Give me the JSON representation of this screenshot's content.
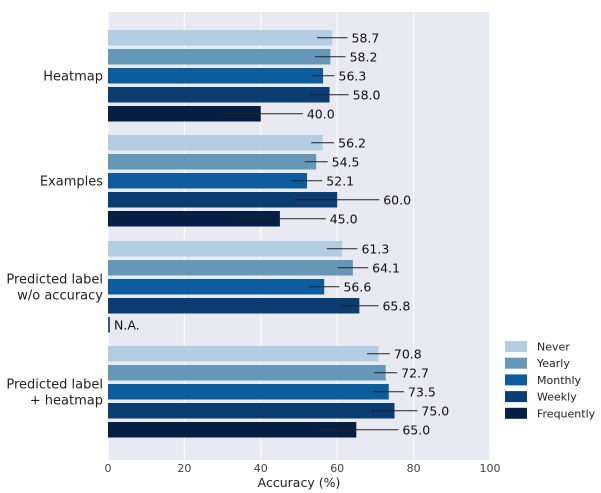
{
  "chart_data": {
    "type": "bar",
    "orientation": "horizontal",
    "xlabel": "Accuracy (%)",
    "xlim": [
      0,
      100
    ],
    "xticks": [
      0,
      20,
      40,
      60,
      80,
      100
    ],
    "grid": true,
    "legend_position": "bottom-right",
    "categories": [
      "Heatmap",
      "Examples",
      "Predicted label\nw/o accuracy",
      "Predicted label\n+ heatmap"
    ],
    "series": [
      {
        "name": "Never",
        "color": "#b3cde3",
        "values": [
          58.7,
          56.2,
          61.3,
          70.8
        ],
        "labels": [
          "58.7",
          "56.2",
          "61.3",
          "70.8"
        ],
        "error": [
          4,
          3,
          4,
          3
        ]
      },
      {
        "name": "Yearly",
        "color": "#6497b8",
        "values": [
          58.2,
          54.5,
          64.1,
          72.7
        ],
        "labels": [
          "58.2",
          "54.5",
          "64.1",
          "72.7"
        ],
        "error": [
          4,
          3,
          4,
          3
        ]
      },
      {
        "name": "Monthly",
        "color": "#0b5d9e",
        "values": [
          56.3,
          52.1,
          56.6,
          73.5
        ],
        "labels": [
          "56.3",
          "52.1",
          "56.6",
          "73.5"
        ],
        "error": [
          3,
          4,
          4,
          4
        ]
      },
      {
        "name": "Weekly",
        "color": "#0b3d73",
        "values": [
          58.0,
          60.0,
          65.8,
          75.0
        ],
        "labels": [
          "58.0",
          "60.0",
          "65.8",
          "75.0"
        ],
        "error": [
          5,
          11,
          5,
          6
        ]
      },
      {
        "name": "Frequently",
        "color": "#061f45",
        "values": [
          40.0,
          45.0,
          0,
          65.0
        ],
        "labels": [
          "40.0",
          "45.0",
          "N.A.",
          "65.0"
        ],
        "error": [
          11,
          12,
          0,
          11
        ]
      }
    ]
  }
}
